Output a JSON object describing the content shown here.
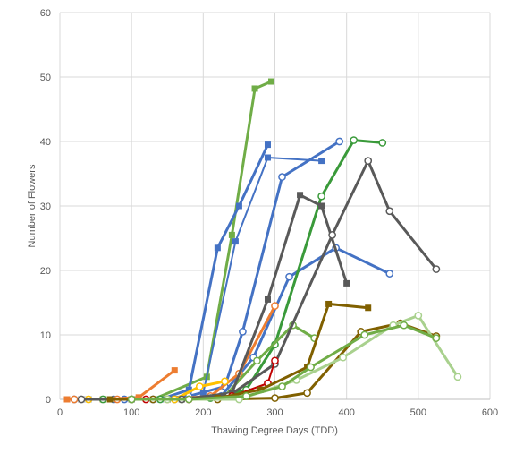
{
  "chart_data": {
    "type": "line",
    "title": "",
    "xlabel": "Thawing Degree Days (TDD)",
    "ylabel": "Number of Flowers",
    "xlim": [
      0,
      600
    ],
    "ylim": [
      0,
      60
    ],
    "xticks": [
      "0",
      "100",
      "200",
      "300",
      "400",
      "500",
      "600"
    ],
    "yticks": [
      "0",
      "10",
      "20",
      "30",
      "40",
      "50",
      "60"
    ],
    "grid": true,
    "legend": "none",
    "series": [
      {
        "color": "#70ad47",
        "marker": "square",
        "width": 3,
        "x": [
          10,
          70,
          130,
          205,
          240,
          272,
          295
        ],
        "y": [
          0,
          0,
          0,
          3.5,
          25.5,
          48.2,
          49.3
        ]
      },
      {
        "color": "#4472c4",
        "marker": "square",
        "width": 3,
        "x": [
          10,
          75,
          140,
          180,
          220,
          250,
          290
        ],
        "y": [
          0,
          0,
          0,
          1.5,
          23.5,
          30,
          39.5
        ]
      },
      {
        "color": "#4472c4",
        "marker": "square",
        "width": 2,
        "x": [
          40,
          100,
          150,
          200,
          245,
          290,
          365
        ],
        "y": [
          0,
          0,
          0,
          1,
          24.5,
          37.5,
          37
        ]
      },
      {
        "color": "#4472c4",
        "marker": "circle",
        "width": 3,
        "x": [
          75,
          130,
          180,
          230,
          255,
          310,
          390
        ],
        "y": [
          0,
          0,
          0.5,
          2,
          10.5,
          34.5,
          40
        ]
      },
      {
        "color": "#4472c4",
        "marker": "circle",
        "width": 3,
        "x": [
          20,
          90,
          160,
          225,
          270,
          320,
          385,
          460
        ],
        "y": [
          0,
          0,
          0,
          0.5,
          6.5,
          19,
          23.5,
          19.5
        ]
      },
      {
        "color": "#ed7d31",
        "marker": "square",
        "width": 3,
        "x": [
          10,
          60,
          110,
          160
        ],
        "y": [
          0,
          0,
          0.3,
          4.5
        ]
      },
      {
        "color": "#ed7d31",
        "marker": "circle",
        "width": 3,
        "x": [
          20,
          80,
          150,
          210,
          250,
          300
        ],
        "y": [
          0,
          0,
          0,
          0.5,
          4,
          14.5
        ]
      },
      {
        "color": "#ffc000",
        "marker": "circle",
        "width": 3,
        "x": [
          40,
          100,
          160,
          195,
          230
        ],
        "y": [
          0,
          0,
          0,
          2,
          2.8
        ]
      },
      {
        "color": "#3a9a3a",
        "marker": "circle",
        "width": 3,
        "x": [
          60,
          140,
          210,
          260,
          300,
          365,
          410,
          450
        ],
        "y": [
          0,
          0,
          0.2,
          1.5,
          8.5,
          31.5,
          40.2,
          39.8
        ]
      },
      {
        "color": "#70ad47",
        "marker": "circle",
        "width": 3,
        "x": [
          100,
          170,
          230,
          275,
          325,
          355
        ],
        "y": [
          0,
          0,
          0.5,
          6,
          11.5,
          9.5
        ]
      },
      {
        "color": "#595959",
        "marker": "square",
        "width": 3,
        "x": [
          30,
          100,
          170,
          240,
          290,
          335,
          365,
          400
        ],
        "y": [
          0,
          0,
          0,
          1,
          15.5,
          31.7,
          30,
          18
        ]
      },
      {
        "color": "#595959",
        "marker": "circle",
        "width": 3,
        "x": [
          30,
          100,
          170,
          235,
          300,
          380,
          430,
          460,
          525
        ],
        "y": [
          0,
          0,
          0,
          0.5,
          5.5,
          25.5,
          37,
          29.2,
          20.2
        ]
      },
      {
        "color": "#c00000",
        "marker": "circle",
        "width": 2,
        "x": [
          120,
          180,
          240,
          290,
          300
        ],
        "y": [
          0,
          0,
          0.5,
          2.5,
          6
        ]
      },
      {
        "color": "#806000",
        "marker": "square",
        "width": 3,
        "x": [
          70,
          150,
          220,
          280,
          345,
          375,
          430
        ],
        "y": [
          0,
          0,
          0.2,
          1.5,
          5,
          14.8,
          14.2
        ]
      },
      {
        "color": "#806000",
        "marker": "circle",
        "width": 3,
        "x": [
          130,
          220,
          300,
          345,
          420,
          475,
          525
        ],
        "y": [
          0,
          0,
          0.2,
          1,
          10.5,
          11.8,
          9.8
        ]
      },
      {
        "color": "#a9d18e",
        "marker": "circle",
        "width": 3,
        "x": [
          150,
          250,
          330,
          395,
          465,
          500,
          555
        ],
        "y": [
          0,
          0,
          3,
          6.5,
          11.5,
          13,
          3.5
        ]
      },
      {
        "color": "#70ad47",
        "marker": "circle",
        "width": 3,
        "x": [
          100,
          180,
          260,
          310,
          350,
          425,
          480,
          525
        ],
        "y": [
          0,
          0,
          0.5,
          2,
          5,
          10,
          11.5,
          9.5
        ]
      }
    ]
  }
}
